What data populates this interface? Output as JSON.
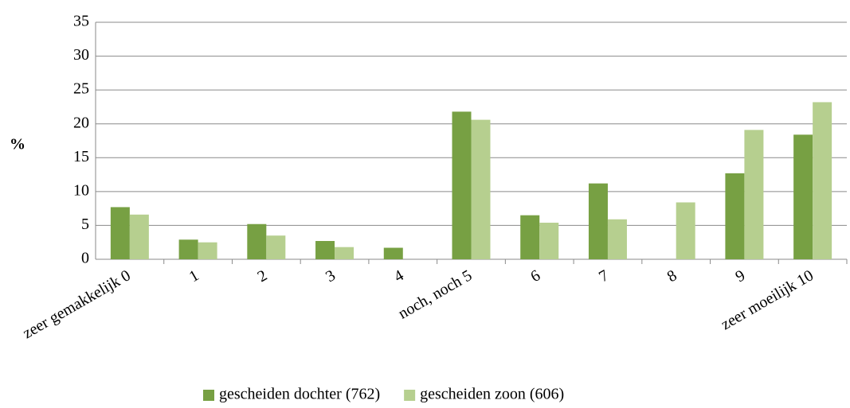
{
  "chart_data": {
    "type": "bar",
    "y_label": "%",
    "categories": [
      "zeer gemakkelijk 0",
      "1",
      "2",
      "3",
      "4",
      "noch, noch 5",
      "6",
      "7",
      "8",
      "9",
      "zeer moeilijk 10"
    ],
    "series": [
      {
        "name": "gescheiden dochter (762)",
        "color": "#77a043",
        "values": [
          7.7,
          2.9,
          5.2,
          2.7,
          1.7,
          21.8,
          6.5,
          11.2,
          0,
          12.7,
          18.4
        ]
      },
      {
        "name": "gescheiden zoon (606)",
        "color": "#b6cf8f",
        "values": [
          6.6,
          2.5,
          3.5,
          1.8,
          0,
          20.6,
          5.4,
          5.9,
          8.4,
          19.1,
          23.2
        ]
      }
    ],
    "ylim": [
      0,
      35
    ],
    "yticks": [
      0,
      5,
      10,
      15,
      20,
      25,
      30,
      35
    ],
    "grid": true,
    "legend": "bottom"
  }
}
